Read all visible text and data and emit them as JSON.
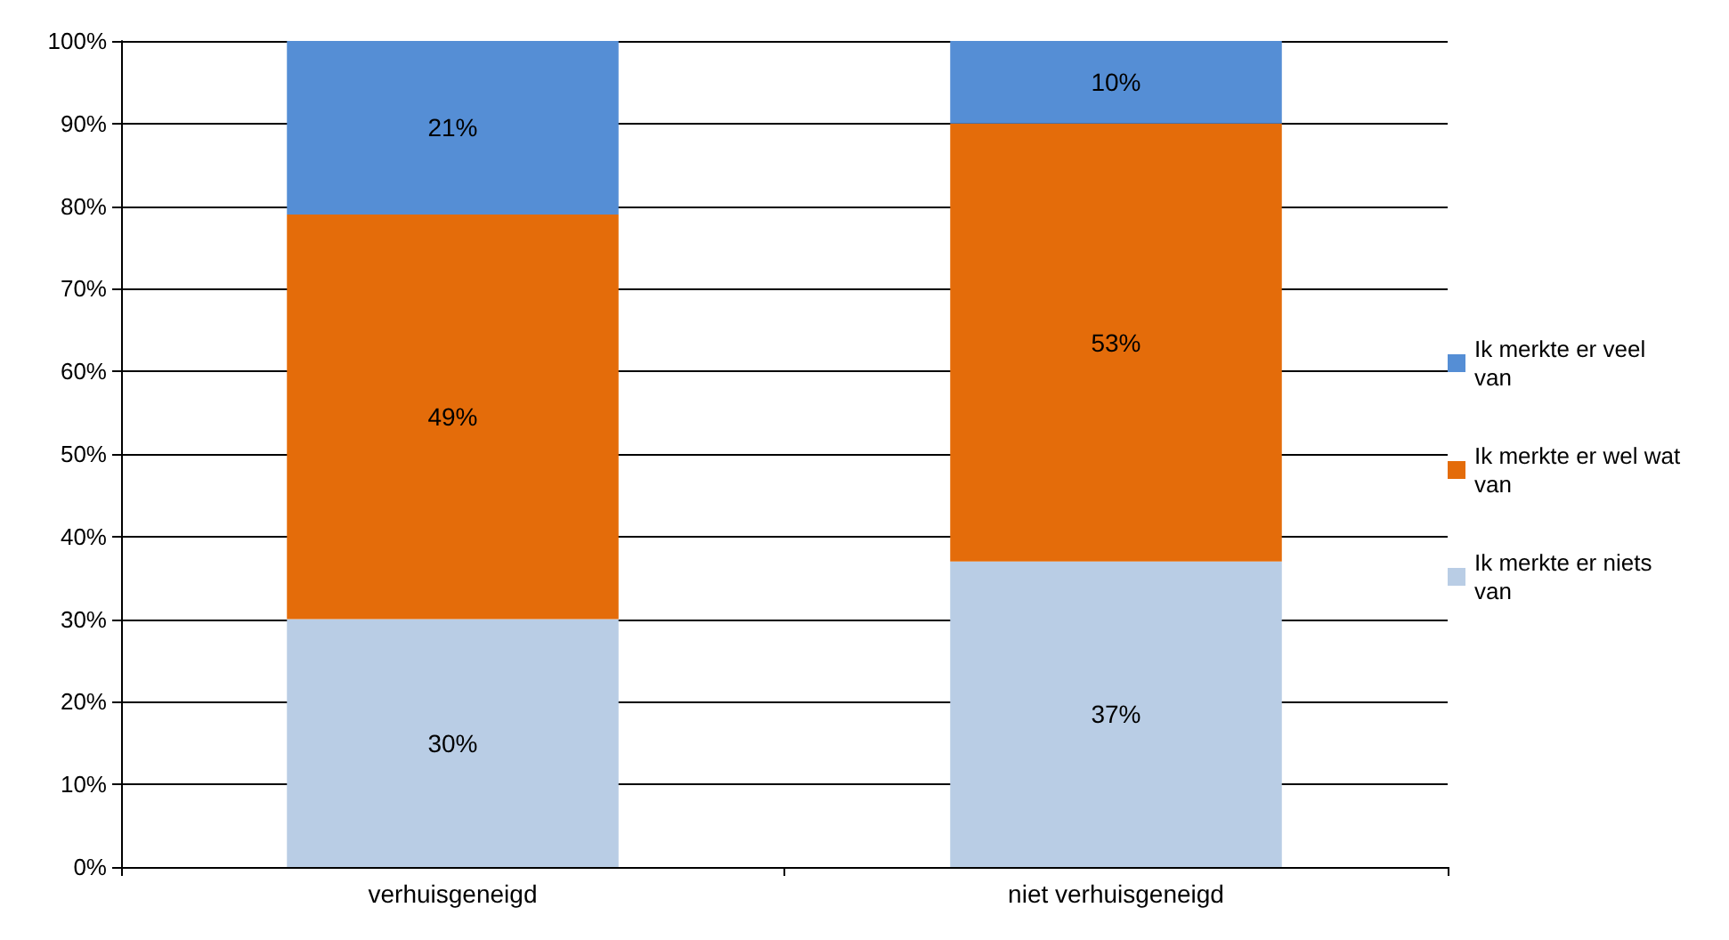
{
  "chart_data": {
    "type": "bar",
    "stacked": true,
    "categories": [
      "verhuisgeneigd",
      "niet verhuisgeneigd"
    ],
    "series": [
      {
        "name": "Ik merkte er niets van",
        "color": "#b9cde5",
        "values": [
          30,
          37
        ],
        "value_labels": [
          "30%",
          "37%"
        ]
      },
      {
        "name": "Ik merkte er wel wat van",
        "color": "#e46c0a",
        "values": [
          49,
          53
        ],
        "value_labels": [
          "49%",
          "53%"
        ]
      },
      {
        "name": "Ik merkte er veel van",
        "color": "#558ed5",
        "values": [
          21,
          10
        ],
        "value_labels": [
          "21%",
          "10%"
        ]
      }
    ],
    "ylim": [
      0,
      100
    ],
    "yticks": [
      {
        "value": 0,
        "label": "0%"
      },
      {
        "value": 10,
        "label": "10%"
      },
      {
        "value": 20,
        "label": "20%"
      },
      {
        "value": 30,
        "label": "30%"
      },
      {
        "value": 40,
        "label": "40%"
      },
      {
        "value": 50,
        "label": "50%"
      },
      {
        "value": 60,
        "label": "60%"
      },
      {
        "value": 70,
        "label": "70%"
      },
      {
        "value": 80,
        "label": "80%"
      },
      {
        "value": 90,
        "label": "90%"
      },
      {
        "value": 100,
        "label": "100%"
      }
    ],
    "grid": "y",
    "legend": "right"
  }
}
